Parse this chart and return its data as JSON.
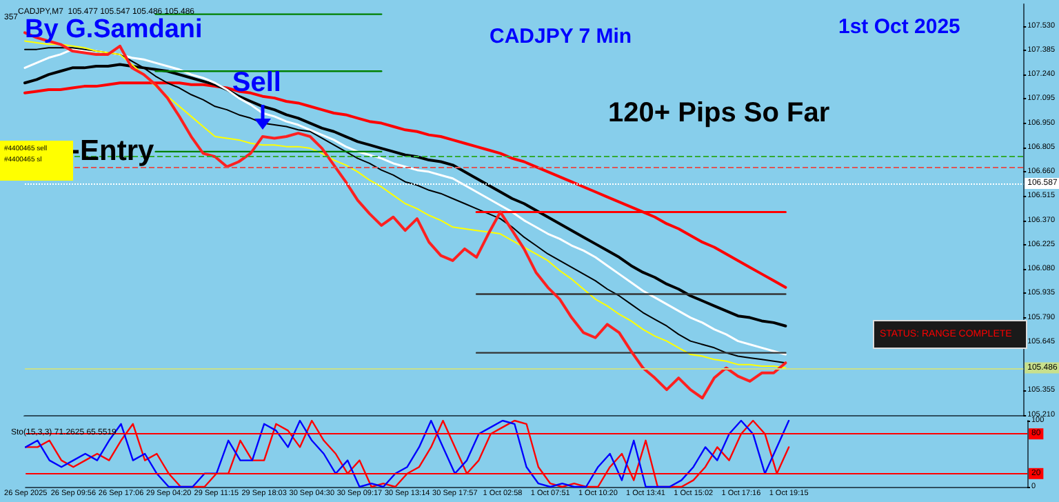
{
  "chart_data": [
    {
      "type": "line",
      "title": "CADJPY 7 Min",
      "subtitle": "CADJPY,M7  105.477 105.547 105.486 105.486",
      "annotations": [
        "By G.Samdani",
        "1st Oct 2025",
        "120+ Pips So Far",
        {
          "text": "Sell",
          "x": "29 Sep 18:03",
          "y": 106.91
        },
        {
          "text": "Entry",
          "y": 106.78
        },
        "STATUS: RANGE COMPLETE",
        "357",
        "#4400465 sell",
        "#4400465 sl"
      ],
      "categories": [
        "26 Sep 2025",
        null,
        null,
        null,
        "26 Sep 09:56",
        null,
        null,
        null,
        "26 Sep 17:06",
        null,
        null,
        null,
        "29 Sep 04:20",
        null,
        null,
        null,
        "29 Sep 11:15",
        null,
        null,
        null,
        "29 Sep 18:03",
        null,
        null,
        null,
        "30 Sep 04:30",
        null,
        null,
        null,
        "30 Sep 09:17",
        null,
        null,
        null,
        "30 Sep 13:14",
        null,
        null,
        null,
        "30 Sep 17:57",
        null,
        null,
        null,
        "1 Oct 02:58",
        null,
        null,
        null,
        "1 Oct 07:51",
        null,
        null,
        null,
        "1 Oct 10:20",
        null,
        null,
        null,
        "1 Oct 13:41",
        null,
        null,
        null,
        "1 Oct 15:02",
        null,
        null,
        null,
        "1 Oct 17:16",
        null,
        null,
        null,
        "1 Oct 19:15",
        null,
        null,
        null,
        null,
        null,
        null,
        null,
        null,
        null,
        null,
        null,
        null,
        null,
        null,
        null,
        null,
        null,
        null,
        null,
        null
      ],
      "series": [
        {
          "color": "#ff0000",
          "values": [
            107.13,
            107.14,
            107.15,
            107.15,
            107.16,
            107.17,
            107.17,
            107.18,
            107.19,
            107.19,
            107.19,
            107.19,
            107.19,
            107.19,
            107.18,
            107.18,
            107.17,
            107.16,
            107.14,
            107.13,
            107.11,
            107.1,
            107.08,
            107.07,
            107.05,
            107.03,
            107.01,
            107.0,
            106.98,
            106.96,
            106.95,
            106.93,
            106.91,
            106.9,
            106.88,
            106.87,
            106.85,
            106.83,
            106.81,
            106.79,
            106.77,
            106.74,
            106.72,
            106.69,
            106.66,
            106.63,
            106.6,
            106.57,
            106.54,
            106.51,
            106.48,
            106.45,
            106.42,
            106.39,
            106.35,
            106.32,
            106.28,
            106.24,
            106.21,
            106.17,
            106.13,
            106.09,
            106.05,
            106.01,
            105.97,
            null,
            null,
            null,
            null,
            null,
            null,
            null,
            null,
            null,
            null,
            null,
            null,
            null,
            null,
            null,
            null,
            null,
            null,
            null,
            null
          ]
        },
        {
          "color": "#000000",
          "values": [
            107.19,
            107.21,
            107.24,
            107.26,
            107.28,
            107.28,
            107.29,
            107.29,
            107.3,
            107.29,
            107.28,
            107.27,
            107.26,
            107.24,
            107.22,
            107.2,
            107.18,
            107.15,
            107.11,
            107.08,
            107.05,
            107.03,
            107.0,
            106.98,
            106.95,
            106.92,
            106.9,
            106.87,
            106.84,
            106.82,
            106.8,
            106.78,
            106.76,
            106.75,
            106.73,
            106.72,
            106.7,
            106.66,
            106.62,
            106.58,
            106.54,
            106.5,
            106.47,
            106.43,
            106.39,
            106.35,
            106.31,
            106.27,
            106.23,
            106.19,
            106.15,
            106.1,
            106.06,
            106.03,
            105.99,
            105.96,
            105.92,
            105.89,
            105.86,
            105.83,
            105.8,
            105.79,
            105.77,
            105.76,
            105.74,
            null,
            null,
            null,
            null,
            null,
            null,
            null,
            null,
            null,
            null,
            null,
            null,
            null,
            null,
            null,
            null,
            null,
            null,
            null,
            null
          ]
        },
        {
          "color": "#ffffff",
          "values": [
            107.28,
            107.31,
            107.34,
            107.36,
            107.39,
            107.38,
            107.38,
            107.37,
            107.36,
            107.34,
            107.33,
            107.31,
            107.29,
            107.27,
            107.24,
            107.22,
            107.19,
            107.15,
            107.1,
            107.06,
            107.01,
            106.99,
            106.96,
            106.94,
            106.91,
            106.88,
            106.85,
            106.81,
            106.78,
            106.76,
            106.74,
            106.71,
            106.69,
            106.67,
            106.66,
            106.64,
            106.62,
            106.58,
            106.54,
            106.5,
            106.46,
            106.42,
            106.37,
            106.33,
            106.29,
            106.26,
            106.22,
            106.19,
            106.15,
            106.1,
            106.05,
            106.0,
            105.95,
            105.91,
            105.87,
            105.83,
            105.79,
            105.76,
            105.72,
            105.69,
            105.65,
            105.63,
            105.61,
            105.59,
            105.57,
            null,
            null,
            null,
            null,
            null,
            null,
            null,
            null,
            null,
            null,
            null,
            null,
            null,
            null,
            null,
            null,
            null,
            null,
            null,
            null
          ]
        },
        {
          "color": "#000000",
          "values": [
            107.39,
            107.39,
            107.4,
            107.4,
            107.4,
            107.39,
            107.38,
            107.37,
            107.36,
            107.32,
            107.28,
            107.23,
            107.19,
            107.16,
            107.12,
            107.09,
            107.05,
            107.03,
            107.0,
            106.98,
            106.95,
            106.94,
            106.93,
            106.91,
            106.9,
            106.86,
            106.82,
            106.78,
            106.74,
            106.71,
            106.67,
            106.64,
            106.6,
            106.58,
            106.55,
            106.53,
            106.5,
            106.47,
            106.44,
            106.41,
            106.38,
            106.33,
            106.27,
            106.22,
            106.17,
            106.13,
            106.09,
            106.05,
            106.01,
            105.96,
            105.92,
            105.87,
            105.82,
            105.78,
            105.74,
            105.69,
            105.65,
            105.63,
            105.61,
            105.58,
            105.56,
            105.55,
            105.54,
            105.53,
            105.52,
            null,
            null,
            null,
            null,
            null,
            null,
            null,
            null,
            null,
            null,
            null,
            null,
            null,
            null,
            null,
            null,
            null,
            null,
            null,
            null
          ]
        },
        {
          "color": "#ffff00",
          "values": [
            107.44,
            107.43,
            107.42,
            107.42,
            107.41,
            107.4,
            107.38,
            107.37,
            107.36,
            107.3,
            107.24,
            107.17,
            107.11,
            107.05,
            106.99,
            106.93,
            106.87,
            106.86,
            106.85,
            106.83,
            106.82,
            106.82,
            106.81,
            106.81,
            106.8,
            106.77,
            106.73,
            106.7,
            106.66,
            106.61,
            106.57,
            106.52,
            106.47,
            106.44,
            106.4,
            106.37,
            106.33,
            106.32,
            106.31,
            106.3,
            106.29,
            106.25,
            106.21,
            106.17,
            106.13,
            106.07,
            106.02,
            105.96,
            105.9,
            105.86,
            105.81,
            105.77,
            105.72,
            105.68,
            105.65,
            105.61,
            105.57,
            105.56,
            105.54,
            105.53,
            105.51,
            105.51,
            105.5,
            105.5,
            105.49,
            null,
            null,
            null,
            null,
            null,
            null,
            null,
            null,
            null,
            null,
            null,
            null,
            null,
            null,
            null,
            null,
            null,
            null,
            null,
            null
          ]
        },
        {
          "color": "#008000",
          "values": [
            null,
            null,
            null,
            null,
            null,
            null,
            null,
            null,
            null,
            null,
            null,
            107.6,
            107.6,
            107.6,
            107.6,
            107.6,
            107.6,
            107.6,
            107.6,
            107.6,
            107.6,
            107.6,
            107.6,
            107.6,
            107.6,
            107.6,
            107.6,
            107.6,
            107.6,
            107.6,
            107.6,
            null,
            null,
            null,
            null,
            null,
            null,
            null,
            null,
            null,
            null,
            null,
            null,
            null,
            null,
            null,
            null,
            null,
            null,
            null,
            null,
            null,
            null,
            null,
            null,
            null,
            null,
            null,
            null,
            null,
            null,
            null,
            null,
            null,
            null,
            null,
            null,
            null,
            null,
            null,
            null,
            null,
            null,
            null,
            null,
            null,
            null,
            null,
            null,
            null,
            null,
            null,
            null,
            null,
            null
          ]
        },
        {
          "color": "#008000",
          "values": [
            null,
            null,
            null,
            null,
            null,
            null,
            null,
            null,
            null,
            null,
            null,
            107.26,
            107.26,
            107.26,
            107.26,
            107.26,
            107.26,
            107.26,
            107.26,
            107.26,
            107.26,
            107.26,
            107.26,
            107.26,
            107.26,
            107.26,
            107.26,
            107.26,
            107.26,
            107.26,
            107.26,
            null,
            null,
            null,
            null,
            null,
            null,
            null,
            null,
            null,
            null,
            null,
            null,
            null,
            null,
            null,
            null,
            null,
            null,
            null,
            null,
            null,
            null,
            null,
            null,
            null,
            null,
            null,
            null,
            null,
            null,
            null,
            null,
            null,
            null,
            null,
            null,
            null,
            null,
            null,
            null,
            null,
            null,
            null,
            null,
            null,
            null,
            null,
            null,
            null,
            null,
            null,
            null,
            null,
            null
          ]
        },
        {
          "color": "#008000",
          "values": [
            null,
            null,
            null,
            null,
            null,
            null,
            null,
            null,
            null,
            null,
            null,
            106.78,
            106.78,
            106.78,
            106.78,
            106.78,
            106.78,
            106.78,
            106.78,
            106.78,
            106.78,
            106.78,
            106.78,
            106.78,
            106.78,
            106.78,
            106.78,
            106.78,
            106.78,
            106.78,
            106.78,
            null,
            null,
            null,
            null,
            null,
            null,
            null,
            null,
            null,
            null,
            null,
            null,
            null,
            null,
            null,
            null,
            null,
            null,
            null,
            null,
            null,
            null,
            null,
            null,
            null,
            null,
            null,
            null,
            null,
            null,
            null,
            null,
            null,
            null,
            null,
            null,
            null,
            null,
            null,
            null,
            null,
            null,
            null,
            null,
            null,
            null,
            null,
            null,
            null,
            null,
            null,
            null,
            null,
            null
          ]
        },
        {
          "color": "#ff0000",
          "values": [
            null,
            null,
            null,
            null,
            null,
            null,
            null,
            null,
            null,
            null,
            null,
            null,
            null,
            null,
            null,
            null,
            null,
            null,
            null,
            null,
            null,
            null,
            null,
            null,
            null,
            null,
            null,
            null,
            null,
            null,
            null,
            null,
            null,
            null,
            null,
            null,
            null,
            null,
            106.42,
            106.42,
            106.42,
            106.42,
            106.42,
            106.42,
            106.42,
            106.42,
            106.42,
            106.42,
            106.42,
            106.42,
            106.42,
            106.42,
            106.42,
            106.42,
            106.42,
            106.42,
            106.42,
            106.42,
            106.42,
            106.42,
            106.42,
            106.42,
            106.42,
            106.42,
            106.42,
            null,
            null,
            null,
            null,
            null,
            null,
            null,
            null,
            null,
            null,
            null,
            null,
            null,
            null,
            null,
            null,
            null,
            null,
            null,
            null
          ]
        },
        {
          "color": "#333333",
          "values": [
            null,
            null,
            null,
            null,
            null,
            null,
            null,
            null,
            null,
            null,
            null,
            null,
            null,
            null,
            null,
            null,
            null,
            null,
            null,
            null,
            null,
            null,
            null,
            null,
            null,
            null,
            null,
            null,
            null,
            null,
            null,
            null,
            null,
            null,
            null,
            null,
            null,
            null,
            105.93,
            105.93,
            105.93,
            105.93,
            105.93,
            105.93,
            105.93,
            105.93,
            105.93,
            105.93,
            105.93,
            105.93,
            105.93,
            105.93,
            105.93,
            105.93,
            105.93,
            105.93,
            105.93,
            105.93,
            105.93,
            105.93,
            105.93,
            105.93,
            105.93,
            105.93,
            105.93,
            null,
            null,
            null,
            null,
            null,
            null,
            null,
            null,
            null,
            null,
            null,
            null,
            null,
            null,
            null,
            null,
            null,
            null,
            null,
            null
          ]
        },
        {
          "color": "#333333",
          "values": [
            null,
            null,
            null,
            null,
            null,
            null,
            null,
            null,
            null,
            null,
            null,
            null,
            null,
            null,
            null,
            null,
            null,
            null,
            null,
            null,
            null,
            null,
            null,
            null,
            null,
            null,
            null,
            null,
            null,
            null,
            null,
            null,
            null,
            null,
            null,
            null,
            null,
            null,
            105.58,
            105.58,
            105.58,
            105.58,
            105.58,
            105.58,
            105.58,
            105.58,
            105.58,
            105.58,
            105.58,
            105.58,
            105.58,
            105.58,
            105.58,
            105.58,
            105.58,
            105.58,
            105.58,
            105.58,
            105.58,
            105.58,
            105.58,
            105.58,
            105.58,
            105.58,
            105.58,
            null,
            null,
            null,
            null,
            null,
            null,
            null,
            null,
            null,
            null,
            null,
            null,
            null,
            null,
            null,
            null,
            null,
            null,
            null,
            null
          ]
        },
        {
          "color": "#ff2020",
          "values": [
            107.49,
            107.46,
            107.44,
            107.42,
            107.38,
            107.37,
            107.36,
            107.36,
            107.41,
            107.28,
            107.24,
            107.18,
            107.1,
            106.99,
            106.87,
            106.77,
            106.75,
            106.69,
            106.72,
            106.77,
            106.87,
            106.86,
            106.87,
            106.89,
            106.87,
            106.8,
            106.7,
            106.6,
            106.49,
            106.41,
            106.34,
            106.39,
            106.31,
            106.38,
            106.24,
            106.16,
            106.13,
            106.2,
            106.15,
            106.29,
            106.42,
            106.31,
            106.2,
            106.06,
            105.97,
            105.9,
            105.79,
            105.7,
            105.67,
            105.75,
            105.7,
            105.59,
            105.49,
            105.43,
            105.36,
            105.43,
            105.36,
            105.31,
            105.43,
            105.49,
            105.44,
            105.41,
            105.46,
            105.46,
            105.52,
            null,
            null,
            null,
            null,
            null,
            null,
            null,
            null,
            null,
            null,
            null,
            null,
            null,
            null,
            null,
            null,
            null,
            null,
            null,
            null
          ]
        }
      ],
      "ylim": [
        105.2,
        107.66
      ],
      "yticks": [
        {
          "value": 105.21,
          "label": "105.210"
        },
        {
          "value": 105.355,
          "label": "105.355"
        },
        {
          "value": 105.645,
          "label": "105.645"
        },
        {
          "value": 105.79,
          "label": "105.790"
        },
        {
          "value": 105.935,
          "label": "105.935"
        },
        {
          "value": 106.08,
          "label": "106.080"
        },
        {
          "value": 106.225,
          "label": "106.225"
        },
        {
          "value": 106.37,
          "label": "106.370"
        },
        {
          "value": 106.515,
          "label": "106.515"
        },
        {
          "value": 106.66,
          "label": "106.660"
        },
        {
          "value": 106.805,
          "label": "106.805"
        },
        {
          "value": 106.95,
          "label": "106.950"
        },
        {
          "value": 107.095,
          "label": "107.095"
        },
        {
          "value": 107.24,
          "label": "107.240"
        },
        {
          "value": 107.385,
          "label": "107.385"
        },
        {
          "value": 107.53,
          "label": "107.530"
        }
      ],
      "ref_lines": [
        {
          "axis": "y",
          "value": 106.75,
          "color": "#33aa33",
          "line_style": "dashed"
        },
        {
          "axis": "y",
          "value": 106.69,
          "color": "#dd5555",
          "line_style": "dashed"
        },
        {
          "axis": "y",
          "value": 106.587,
          "label": "106.587",
          "color": "#ffffff",
          "line_style": "dotted"
        },
        {
          "axis": "y",
          "value": 105.486,
          "label": "105.486",
          "color": "#c8e08c",
          "line_style": "solid"
        }
      ],
      "tick_labels": "y",
      "grid": false,
      "marker": "none",
      "line_style": "solid"
    },
    {
      "type": "line",
      "title": "Sto(15,3,3) 71.2625 65.5519",
      "categories": [
        "26 Sep 2025",
        null,
        null,
        null,
        "26 Sep 09:56",
        null,
        null,
        null,
        "26 Sep 17:06",
        null,
        null,
        null,
        "29 Sep 04:20",
        null,
        null,
        null,
        "29 Sep 11:15",
        null,
        null,
        null,
        "29 Sep 18:03",
        null,
        null,
        null,
        "30 Sep 04:30",
        null,
        null,
        null,
        "30 Sep 09:17",
        null,
        null,
        null,
        "30 Sep 13:14",
        null,
        null,
        null,
        "30 Sep 17:57",
        null,
        null,
        null,
        "1 Oct 02:58",
        null,
        null,
        null,
        "1 Oct 07:51",
        null,
        null,
        null,
        "1 Oct 10:20",
        null,
        null,
        null,
        "1 Oct 13:41",
        null,
        null,
        null,
        "1 Oct 15:02",
        null,
        null,
        null,
        "1 Oct 17:16",
        null,
        null,
        null,
        "1 Oct 19:15",
        null,
        null,
        null,
        null,
        null,
        null,
        null,
        null,
        null,
        null,
        null,
        null,
        null,
        null,
        null,
        null,
        null,
        null,
        null,
        null
      ],
      "series": [
        {
          "color": "#ff0000",
          "values": [
            60,
            60,
            70,
            40,
            30,
            40,
            50,
            40,
            70,
            95,
            40,
            50,
            20,
            0,
            0,
            0,
            20,
            20,
            70,
            40,
            40,
            95,
            85,
            60,
            100,
            70,
            50,
            20,
            40,
            0,
            5,
            0,
            20,
            30,
            60,
            100,
            60,
            20,
            40,
            80,
            90,
            100,
            95,
            30,
            5,
            0,
            5,
            0,
            0,
            30,
            50,
            10,
            70,
            0,
            0,
            0,
            10,
            30,
            60,
            40,
            80,
            100,
            80,
            20,
            60,
            null,
            null,
            null,
            null,
            null,
            null,
            null,
            null,
            null,
            null,
            null,
            null,
            null,
            null,
            null,
            null,
            null,
            null,
            null,
            null
          ]
        },
        {
          "color": "#0000ff",
          "values": [
            60,
            70,
            40,
            30,
            40,
            50,
            40,
            70,
            95,
            40,
            50,
            20,
            0,
            0,
            0,
            20,
            20,
            70,
            40,
            40,
            95,
            85,
            60,
            100,
            70,
            50,
            20,
            40,
            0,
            5,
            0,
            20,
            30,
            60,
            100,
            60,
            20,
            40,
            80,
            90,
            100,
            95,
            30,
            5,
            0,
            5,
            0,
            0,
            30,
            50,
            10,
            70,
            0,
            0,
            0,
            10,
            30,
            60,
            40,
            80,
            100,
            80,
            20,
            60,
            100,
            null,
            null,
            null,
            null,
            null,
            null,
            null,
            null,
            null,
            null,
            null,
            null,
            null,
            null,
            null,
            null,
            null,
            null,
            null,
            null
          ]
        }
      ],
      "ylim": [
        0,
        100
      ],
      "yticks": [
        0,
        100
      ],
      "ref_lines": [
        {
          "axis": "y",
          "value": 80,
          "label": "80",
          "color": "#ff0000",
          "line_style": "solid"
        },
        {
          "axis": "y",
          "value": 20,
          "label": "20",
          "color": "#ff0000",
          "line_style": "solid"
        }
      ],
      "grid": false,
      "marker": "none",
      "line_style": "solid"
    }
  ]
}
